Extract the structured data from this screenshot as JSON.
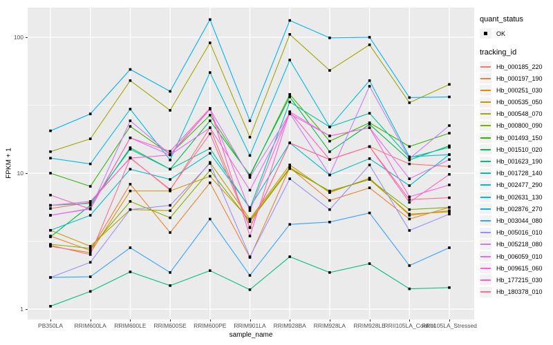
{
  "figure": {
    "xlabel": "sample_name",
    "ylabel": "FPKM + 1",
    "panel_bg": "#EBEBEB",
    "grid_color": "#FFFFFF",
    "y_ticks": [
      {
        "label": "100",
        "value": 100
      },
      {
        "label": "10",
        "value": 10
      },
      {
        "label": "1",
        "value": 1
      }
    ]
  },
  "legend": {
    "quant_status_title": "quant_status",
    "ok_label": "OK",
    "ok_marker": "black-square",
    "tracking_title": "tracking_id"
  },
  "chart_data": {
    "type": "line",
    "title": "",
    "xlabel": "sample_name",
    "ylabel": "FPKM + 1",
    "y_scale": "log10",
    "ylim": [
      0.85,
      165
    ],
    "y_major_ticks": [
      1,
      10,
      100
    ],
    "y_minor_ticks": [
      3.1623,
      31.623
    ],
    "grid": true,
    "legend_position": "right",
    "marker": "black-square",
    "categories": [
      "PB350LA",
      "RRIM600LA",
      "RRIM600LE",
      "RRIM600SE",
      "RRIM600PE",
      "RRIM901LA",
      "RRIM928BA",
      "RRIM928LA",
      "RRIM928LE",
      "RRII105LA_Control",
      "RRII105LA_Stressed"
    ],
    "series": [
      {
        "name": "Hb_000185_220",
        "color": "#F8766D",
        "values": [
          5.5,
          6.1,
          13.0,
          7.5,
          21.6,
          4.0,
          16.7,
          12.6,
          15.7,
          11.7,
          11.2
        ]
      },
      {
        "name": "Hb_000197_190",
        "color": "#EA8331",
        "values": [
          3.45,
          2.7,
          8.3,
          3.66,
          8.5,
          2.4,
          11.0,
          6.3,
          7.8,
          4.6,
          5.6
        ]
      },
      {
        "name": "Hb_000251_030",
        "color": "#D89000",
        "values": [
          2.9,
          2.6,
          7.4,
          7.4,
          9.5,
          4.5,
          11.0,
          7.3,
          9.0,
          5.0,
          5.2
        ]
      },
      {
        "name": "Hb_000535_050",
        "color": "#C09B00",
        "values": [
          3.8,
          2.9,
          5.4,
          5.3,
          12.0,
          4.6,
          11.5,
          7.2,
          9.2,
          4.9,
          5.3
        ]
      },
      {
        "name": "Hb_000548_070",
        "color": "#A3A500",
        "values": [
          14.4,
          17.9,
          48.0,
          29.0,
          91.0,
          18.4,
          105.0,
          57.0,
          88.0,
          33.0,
          45.0
        ]
      },
      {
        "name": "Hb_000800_090",
        "color": "#7CAE00",
        "values": [
          3.0,
          2.8,
          6.2,
          4.7,
          10.5,
          4.4,
          10.8,
          7.4,
          9.0,
          5.4,
          5.6
        ]
      },
      {
        "name": "Hb_001493_150",
        "color": "#39B600",
        "values": [
          10.0,
          8.0,
          22.1,
          13.8,
          26.7,
          9.5,
          38.0,
          17.2,
          23.5,
          15.7,
          19.7
        ]
      },
      {
        "name": "Hb_001510_020",
        "color": "#00BB4E",
        "values": [
          3.4,
          5.8,
          15.4,
          10.7,
          24.3,
          9.7,
          36.4,
          14.4,
          22.9,
          12.5,
          15.9
        ]
      },
      {
        "name": "Hb_001623_190",
        "color": "#00BF7D",
        "values": [
          1.05,
          1.35,
          1.88,
          1.49,
          1.92,
          1.39,
          2.43,
          1.86,
          2.16,
          1.41,
          1.44
        ]
      },
      {
        "name": "Hb_001728_140",
        "color": "#00C1A3",
        "values": [
          5.8,
          6.0,
          15.0,
          10.7,
          15.2,
          5.5,
          33.4,
          21.9,
          27.6,
          13.0,
          15.5
        ]
      },
      {
        "name": "Hb_002477_290",
        "color": "#00BFC4",
        "values": [
          3.8,
          4.9,
          10.7,
          9.0,
          14.0,
          5.6,
          16.7,
          9.7,
          12.8,
          8.1,
          13.7
        ]
      },
      {
        "name": "Hb_002631_130",
        "color": "#00BAE0",
        "values": [
          12.9,
          11.7,
          29.6,
          12.5,
          55.0,
          13.5,
          68.0,
          21.9,
          48.0,
          13.2,
          13.7
        ]
      },
      {
        "name": "Hb_002876_270",
        "color": "#00B0F6",
        "values": [
          20.5,
          27.3,
          58.0,
          40.0,
          135.0,
          24.3,
          133.0,
          99.0,
          100.0,
          36.0,
          36.4
        ]
      },
      {
        "name": "Hb_003044_080",
        "color": "#35A2FF",
        "values": [
          1.71,
          1.73,
          2.83,
          1.86,
          4.6,
          1.77,
          4.2,
          4.37,
          5.1,
          2.09,
          2.83
        ]
      },
      {
        "name": "Hb_005016_010",
        "color": "#9590FF",
        "values": [
          1.71,
          2.21,
          5.4,
          5.8,
          11.8,
          2.43,
          9.1,
          5.4,
          11.5,
          3.79,
          5.0
        ]
      },
      {
        "name": "Hb_005218_080",
        "color": "#C77CFF",
        "values": [
          4.9,
          5.45,
          24.3,
          13.8,
          29.6,
          9.3,
          27.6,
          9.7,
          43.6,
          12.8,
          22.4
        ]
      },
      {
        "name": "Hb_006059_010",
        "color": "#E76BF3",
        "values": [
          4.9,
          5.5,
          18.2,
          13.6,
          21.6,
          7.5,
          27.3,
          18.8,
          21.6,
          9.1,
          12.6
        ]
      },
      {
        "name": "Hb_009615_060",
        "color": "#FA62DB",
        "values": [
          5.8,
          6.2,
          12.9,
          13.6,
          29.6,
          5.3,
          28.3,
          18.8,
          21.6,
          6.7,
          8.2
        ]
      },
      {
        "name": "Hb_177215_030",
        "color": "#FF62BC",
        "values": [
          6.9,
          5.45,
          18.2,
          14.5,
          30.0,
          3.45,
          28.3,
          12.6,
          15.7,
          6.1,
          9.8
        ]
      },
      {
        "name": "Hb_180378_010",
        "color": "#FF6A98",
        "values": [
          2.95,
          2.52,
          12.9,
          7.6,
          19.5,
          3.97,
          16.7,
          12.6,
          15.7,
          6.4,
          6.6
        ]
      }
    ]
  }
}
